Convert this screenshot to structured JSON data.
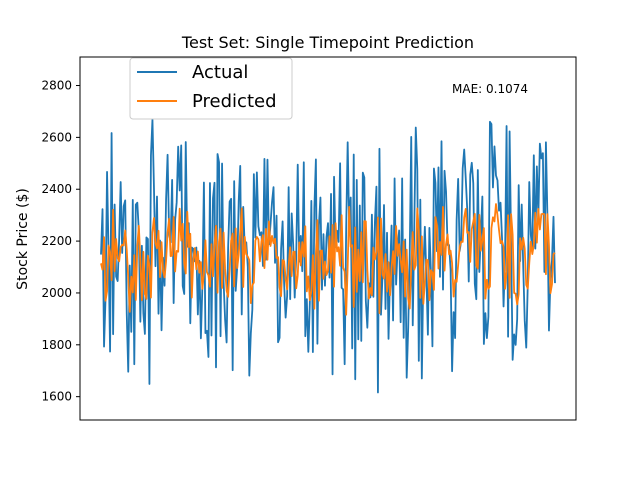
{
  "chart_data": {
    "type": "line",
    "title": "Test Set: Single Timepoint Prediction",
    "xlabel": "",
    "ylabel": "Stock Price ($)",
    "xlim": [
      0,
      300
    ],
    "ylim": [
      1510,
      2910
    ],
    "yticks": [
      1600,
      1800,
      2000,
      2200,
      2400,
      2600,
      2800
    ],
    "ytick_labels": [
      "1600",
      "1800",
      "2000",
      "2200",
      "2400",
      "2600",
      "2800"
    ],
    "grid": false,
    "legend_position": "upper-left",
    "annotation": "MAE: 0.1074",
    "series": [
      {
        "name": "Actual",
        "color": "#1f77b4",
        "generator": {
          "seed": 20240517,
          "n": 301,
          "center": 2150,
          "half_range": 550,
          "min": 1575,
          "max": 2865
        }
      },
      {
        "name": "Predicted",
        "color": "#ff7f0e",
        "generator": {
          "seed": 771,
          "n": 301,
          "center": 2110,
          "spread": 0.38,
          "min": 1800,
          "max": 2455
        }
      }
    ]
  }
}
